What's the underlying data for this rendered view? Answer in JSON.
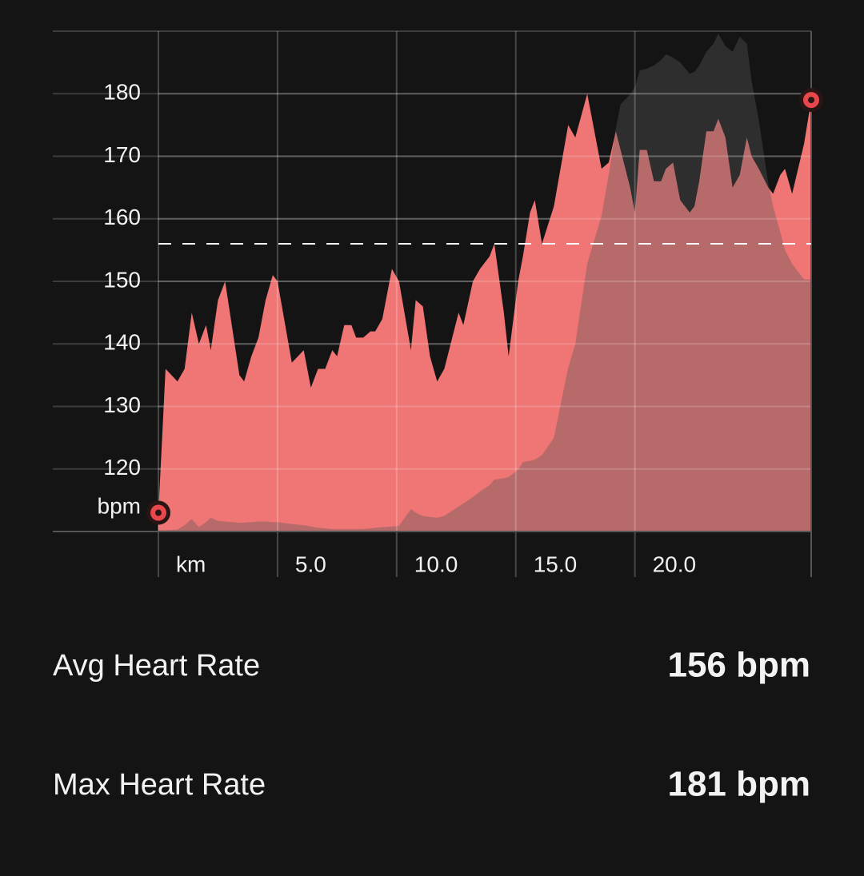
{
  "chart_data": {
    "type": "area",
    "y_label": "bpm",
    "x": [
      0,
      0.3,
      0.8,
      1.1,
      1.4,
      1.7,
      2.0,
      2.2,
      2.5,
      2.8,
      3.4,
      3.6,
      3.9,
      4.2,
      4.5,
      4.8,
      5.0,
      5.6,
      6.1,
      6.4,
      6.7,
      7.0,
      7.3,
      7.5,
      7.8,
      8.1,
      8.3,
      8.6,
      8.9,
      9.1,
      9.4,
      9.8,
      10.1,
      10.6,
      10.8,
      11.1,
      11.4,
      11.7,
      12.0,
      12.2,
      12.6,
      12.8,
      13.2,
      13.5,
      13.9,
      14.1,
      14.5,
      14.7,
      15.1,
      15.3,
      15.6,
      15.8,
      16.1,
      16.6,
      17.2,
      17.5,
      18.0,
      18.6,
      18.9,
      19.2,
      19.4,
      19.8,
      20.0,
      20.2,
      20.5,
      20.8,
      21.1,
      21.3,
      21.6,
      21.9,
      22.3,
      22.5,
      22.7,
      23.0,
      23.3,
      23.5,
      23.8,
      24.1,
      24.4,
      24.7,
      24.9,
      25.2,
      25.6,
      25.8,
      26.1,
      26.3,
      26.6,
      27.1,
      27.4
    ],
    "series": [
      {
        "color": "#f07575",
        "values": [
          113,
          136,
          134,
          136,
          145,
          140,
          143,
          139,
          147,
          150,
          135,
          134,
          138,
          141,
          147,
          151,
          150,
          137,
          139,
          133,
          136,
          136,
          139,
          138,
          143,
          143,
          141,
          141,
          142,
          142,
          144,
          152,
          150,
          139,
          147,
          146,
          138,
          134,
          136,
          139,
          145,
          143,
          150,
          152,
          154,
          156,
          145,
          138,
          150,
          154,
          161,
          163,
          156,
          162,
          175,
          173,
          180,
          168,
          169,
          174,
          171,
          165,
          161,
          171,
          171,
          166,
          166,
          168,
          169,
          163,
          161,
          162,
          166,
          174,
          174,
          176,
          173,
          165,
          167,
          173,
          170,
          168,
          165,
          164,
          167,
          168,
          164,
          172,
          179
        ]
      },
      {
        "color": "#595959",
        "values": [
          110.2,
          110.2,
          110.3,
          111,
          112,
          110.7,
          111.5,
          112.2,
          111.7,
          111.6,
          111.4,
          111.4,
          111.5,
          111.6,
          111.6,
          111.5,
          111.5,
          111.2,
          111,
          110.8,
          110.6,
          110.5,
          110.4,
          110.4,
          110.4,
          110.4,
          110.4,
          110.4,
          110.5,
          110.6,
          110.7,
          110.8,
          110.9,
          113.6,
          113,
          112.5,
          112.3,
          112.2,
          112.5,
          113,
          114,
          114.5,
          115.5,
          116.4,
          117.4,
          118.3,
          118.5,
          118.7,
          119.9,
          121.1,
          121.3,
          121.5,
          122.2,
          125,
          136.2,
          140,
          152.8,
          160.5,
          167,
          174.5,
          178.3,
          179.9,
          181,
          183.7,
          184,
          184.5,
          185.4,
          186.3,
          185.8,
          185,
          183.2,
          183.5,
          184.5,
          186.7,
          188,
          189.6,
          187.6,
          186.7,
          189.1,
          188,
          182,
          175.8,
          165.6,
          162,
          157.9,
          155,
          152.8,
          150.3,
          150.3
        ]
      }
    ],
    "avg_line": 156,
    "xlim": [
      0,
      27.4
    ],
    "ylim": [
      110,
      190
    ],
    "xticks": [
      {
        "value": 0,
        "label": "km"
      },
      {
        "value": 5,
        "label": "5.0"
      },
      {
        "value": 10,
        "label": "10.0"
      },
      {
        "value": 15,
        "label": "15.0"
      },
      {
        "value": 20,
        "label": "20.0"
      }
    ],
    "yticks": [
      120,
      130,
      140,
      150,
      160,
      170,
      180
    ],
    "grid": true
  },
  "stats": [
    {
      "label": "Avg Heart Rate",
      "value": "156 bpm"
    },
    {
      "label": "Max Heart Rate",
      "value": "181 bpm"
    }
  ]
}
